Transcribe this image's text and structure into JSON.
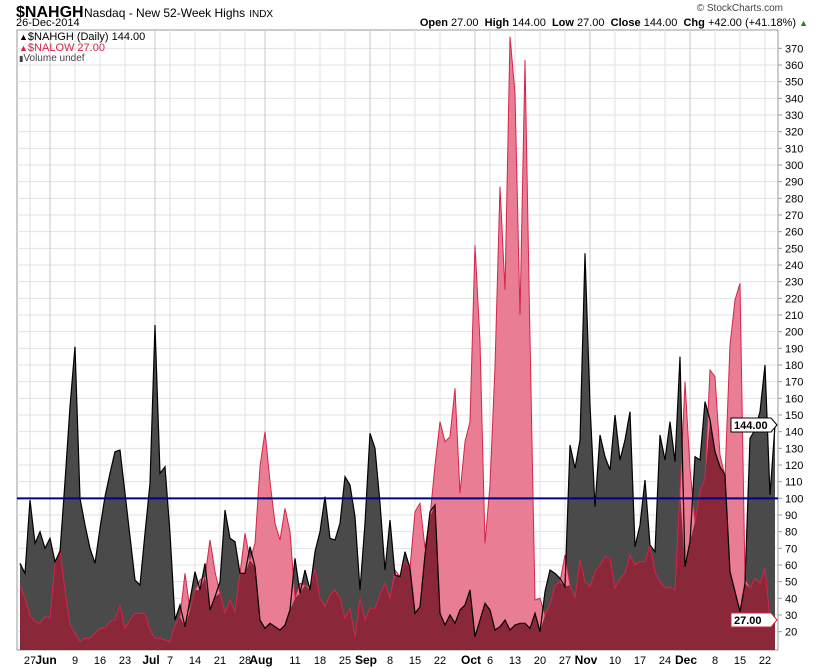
{
  "header": {
    "symbol": "$NAHGH",
    "name": "Nasdaq - New 52-Week Highs",
    "exchange": "INDX",
    "date": "26-Dec-2014",
    "credit": "© StockCharts.com",
    "open_label": "Open",
    "open": "27.00",
    "high_label": "High",
    "high": "144.00",
    "low_label": "Low",
    "low": "27.00",
    "close_label": "Close",
    "close": "144.00",
    "chg_label": "Chg",
    "chg": "+42.00 (+41.18%)",
    "up_arrow": "▲"
  },
  "legend": {
    "highs": "$NAHGH (Daily) 144.00",
    "lows": "$NALOW 27.00",
    "volume": "Volume undef"
  },
  "colors": {
    "highs": "#4a4a4a",
    "highs_line": "#000000",
    "lows": "#e87d93",
    "lows_line": "#d4244a",
    "overlap": "#8a2739",
    "ref_line": "#00008b"
  },
  "chart_data": {
    "type": "area",
    "title": "$NAHGH Nasdaq - New 52-Week Highs",
    "ylim": [
      9,
      381
    ],
    "yticks": [
      20,
      30,
      40,
      50,
      60,
      70,
      80,
      90,
      100,
      110,
      120,
      130,
      140,
      150,
      160,
      170,
      180,
      190,
      200,
      210,
      220,
      230,
      240,
      250,
      260,
      270,
      280,
      290,
      300,
      310,
      320,
      330,
      340,
      350,
      360,
      370
    ],
    "reference_line": 100,
    "last_high_tag": "144.00",
    "last_low_tag": "27.00",
    "xticks": [
      {
        "label": "27",
        "i": 2,
        "month": false
      },
      {
        "label": "Jun",
        "i": 6,
        "month": true
      },
      {
        "label": "9",
        "i": 11,
        "month": false
      },
      {
        "label": "16",
        "i": 16,
        "month": false
      },
      {
        "label": "23",
        "i": 21,
        "month": false
      },
      {
        "label": "Jul",
        "i": 27,
        "month": true
      },
      {
        "label": "7",
        "i": 30,
        "month": false
      },
      {
        "label": "14",
        "i": 35,
        "month": false
      },
      {
        "label": "21",
        "i": 40,
        "month": false
      },
      {
        "label": "28",
        "i": 45,
        "month": false
      },
      {
        "label": "Aug",
        "i": 49,
        "month": true
      },
      {
        "label": "11",
        "i": 55,
        "month": false
      },
      {
        "label": "18",
        "i": 60,
        "month": false
      },
      {
        "label": "25",
        "i": 65,
        "month": false
      },
      {
        "label": "Sep",
        "i": 70,
        "month": true
      },
      {
        "label": "8",
        "i": 74,
        "month": false
      },
      {
        "label": "15",
        "i": 79,
        "month": false
      },
      {
        "label": "22",
        "i": 84,
        "month": false
      },
      {
        "label": "Oct",
        "i": 91,
        "month": true
      },
      {
        "label": "6",
        "i": 94,
        "month": false
      },
      {
        "label": "13",
        "i": 99,
        "month": false
      },
      {
        "label": "20",
        "i": 104,
        "month": false
      },
      {
        "label": "27",
        "i": 109,
        "month": false
      },
      {
        "label": "Nov",
        "i": 114,
        "month": true
      },
      {
        "label": "10",
        "i": 119,
        "month": false
      },
      {
        "label": "17",
        "i": 124,
        "month": false
      },
      {
        "label": "24",
        "i": 129,
        "month": false
      },
      {
        "label": "Dec",
        "i": 134,
        "month": true
      },
      {
        "label": "8",
        "i": 139,
        "month": false
      },
      {
        "label": "15",
        "i": 144,
        "month": false
      },
      {
        "label": "22",
        "i": 149,
        "month": false
      }
    ],
    "series": [
      {
        "name": "$NAHGH",
        "values": [
          61,
          55,
          99,
          73,
          80,
          70,
          76,
          62,
          68,
          110,
          155,
          191,
          100,
          84,
          70,
          61,
          82,
          101,
          115,
          128,
          129,
          103,
          77,
          51,
          48,
          79,
          109,
          204,
          115,
          119,
          79,
          27,
          36,
          23,
          39,
          56,
          45,
          61,
          33,
          41,
          50,
          93,
          76,
          74,
          55,
          55,
          71,
          59,
          27,
          22,
          25,
          23,
          21,
          24,
          33,
          64,
          43,
          57,
          45,
          68,
          80,
          101,
          76,
          75,
          85,
          113,
          108,
          89,
          45,
          85,
          139,
          130,
          97,
          57,
          87,
          54,
          53,
          68,
          58,
          31,
          35,
          66,
          92,
          96,
          31,
          24,
          30,
          25,
          33,
          36,
          45,
          17,
          27,
          37,
          33,
          21,
          23,
          27,
          21,
          24,
          25,
          25,
          22,
          31,
          20,
          44,
          57,
          55,
          52,
          47,
          132,
          118,
          135,
          247,
          156,
          95,
          138,
          125,
          117,
          150,
          123,
          135,
          152,
          71,
          84,
          111,
          72,
          68,
          138,
          123,
          146,
          122,
          185,
          59,
          74,
          125,
          123,
          158,
          147,
          128,
          119,
          114,
          56,
          44,
          32,
          49,
          136,
          141,
          152,
          180,
          102,
          144
        ]
      },
      {
        "name": "$NALOW",
        "values": [
          48,
          40,
          30,
          26,
          25,
          29,
          28,
          61,
          69,
          45,
          24,
          19,
          14,
          16,
          16,
          19,
          22,
          22,
          26,
          27,
          36,
          22,
          27,
          31,
          31,
          31,
          21,
          16,
          16,
          15,
          14,
          24,
          29,
          55,
          33,
          45,
          51,
          53,
          75,
          56,
          43,
          31,
          39,
          32,
          55,
          79,
          63,
          73,
          119,
          140,
          110,
          85,
          75,
          94,
          80,
          40,
          49,
          48,
          47,
          58,
          40,
          35,
          42,
          45,
          40,
          28,
          34,
          17,
          40,
          27,
          34,
          34,
          42,
          49,
          40,
          57,
          53,
          62,
          58,
          92,
          97,
          70,
          89,
          120,
          146,
          134,
          137,
          166,
          103,
          134,
          146,
          252,
          194,
          73,
          108,
          179,
          287,
          225,
          377,
          343,
          210,
          363,
          196,
          39,
          40,
          30,
          36,
          48,
          50,
          66,
          48,
          40,
          63,
          50,
          47,
          56,
          60,
          65,
          64,
          46,
          52,
          55,
          66,
          60,
          62,
          62,
          72,
          56,
          50,
          46,
          47,
          45,
          104,
          170,
          118,
          86,
          104,
          112,
          177,
          173,
          126,
          113,
          192,
          219,
          229,
          52,
          46,
          52,
          49,
          58,
          27,
          27
        ]
      }
    ]
  }
}
